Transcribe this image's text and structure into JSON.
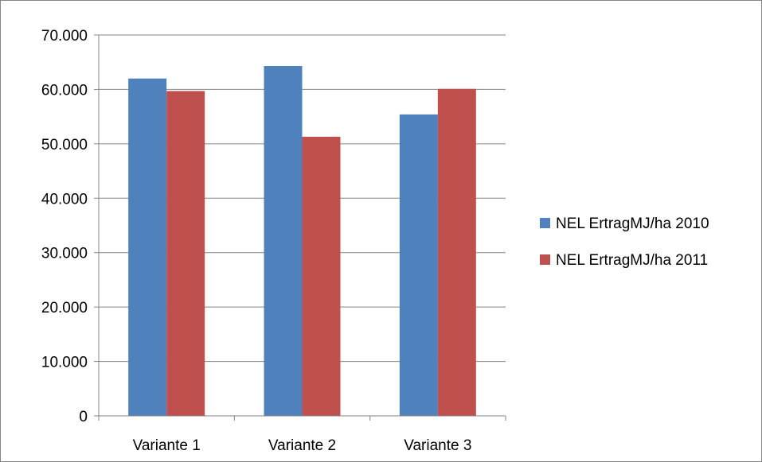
{
  "chart_data": {
    "type": "bar",
    "title": "",
    "xlabel": "",
    "ylabel": "",
    "categories": [
      "Variante 1",
      "Variante 2",
      "Variante 3"
    ],
    "series": [
      {
        "name": "NEL ErtragMJ/ha 2010",
        "color": "#4f81bd",
        "values": [
          62000,
          64300,
          55400
        ]
      },
      {
        "name": "NEL ErtragMJ/ha 2011",
        "color": "#c0504d",
        "values": [
          59700,
          51300,
          60100
        ]
      }
    ],
    "ylim": [
      0,
      70000
    ],
    "yticks": [
      0,
      10000,
      20000,
      30000,
      40000,
      50000,
      60000,
      70000
    ],
    "ytick_labels": [
      "0",
      "10.000",
      "20.000",
      "30.000",
      "40.000",
      "50.000",
      "60.000",
      "70.000"
    ],
    "grid": true,
    "legend_position": "right"
  }
}
